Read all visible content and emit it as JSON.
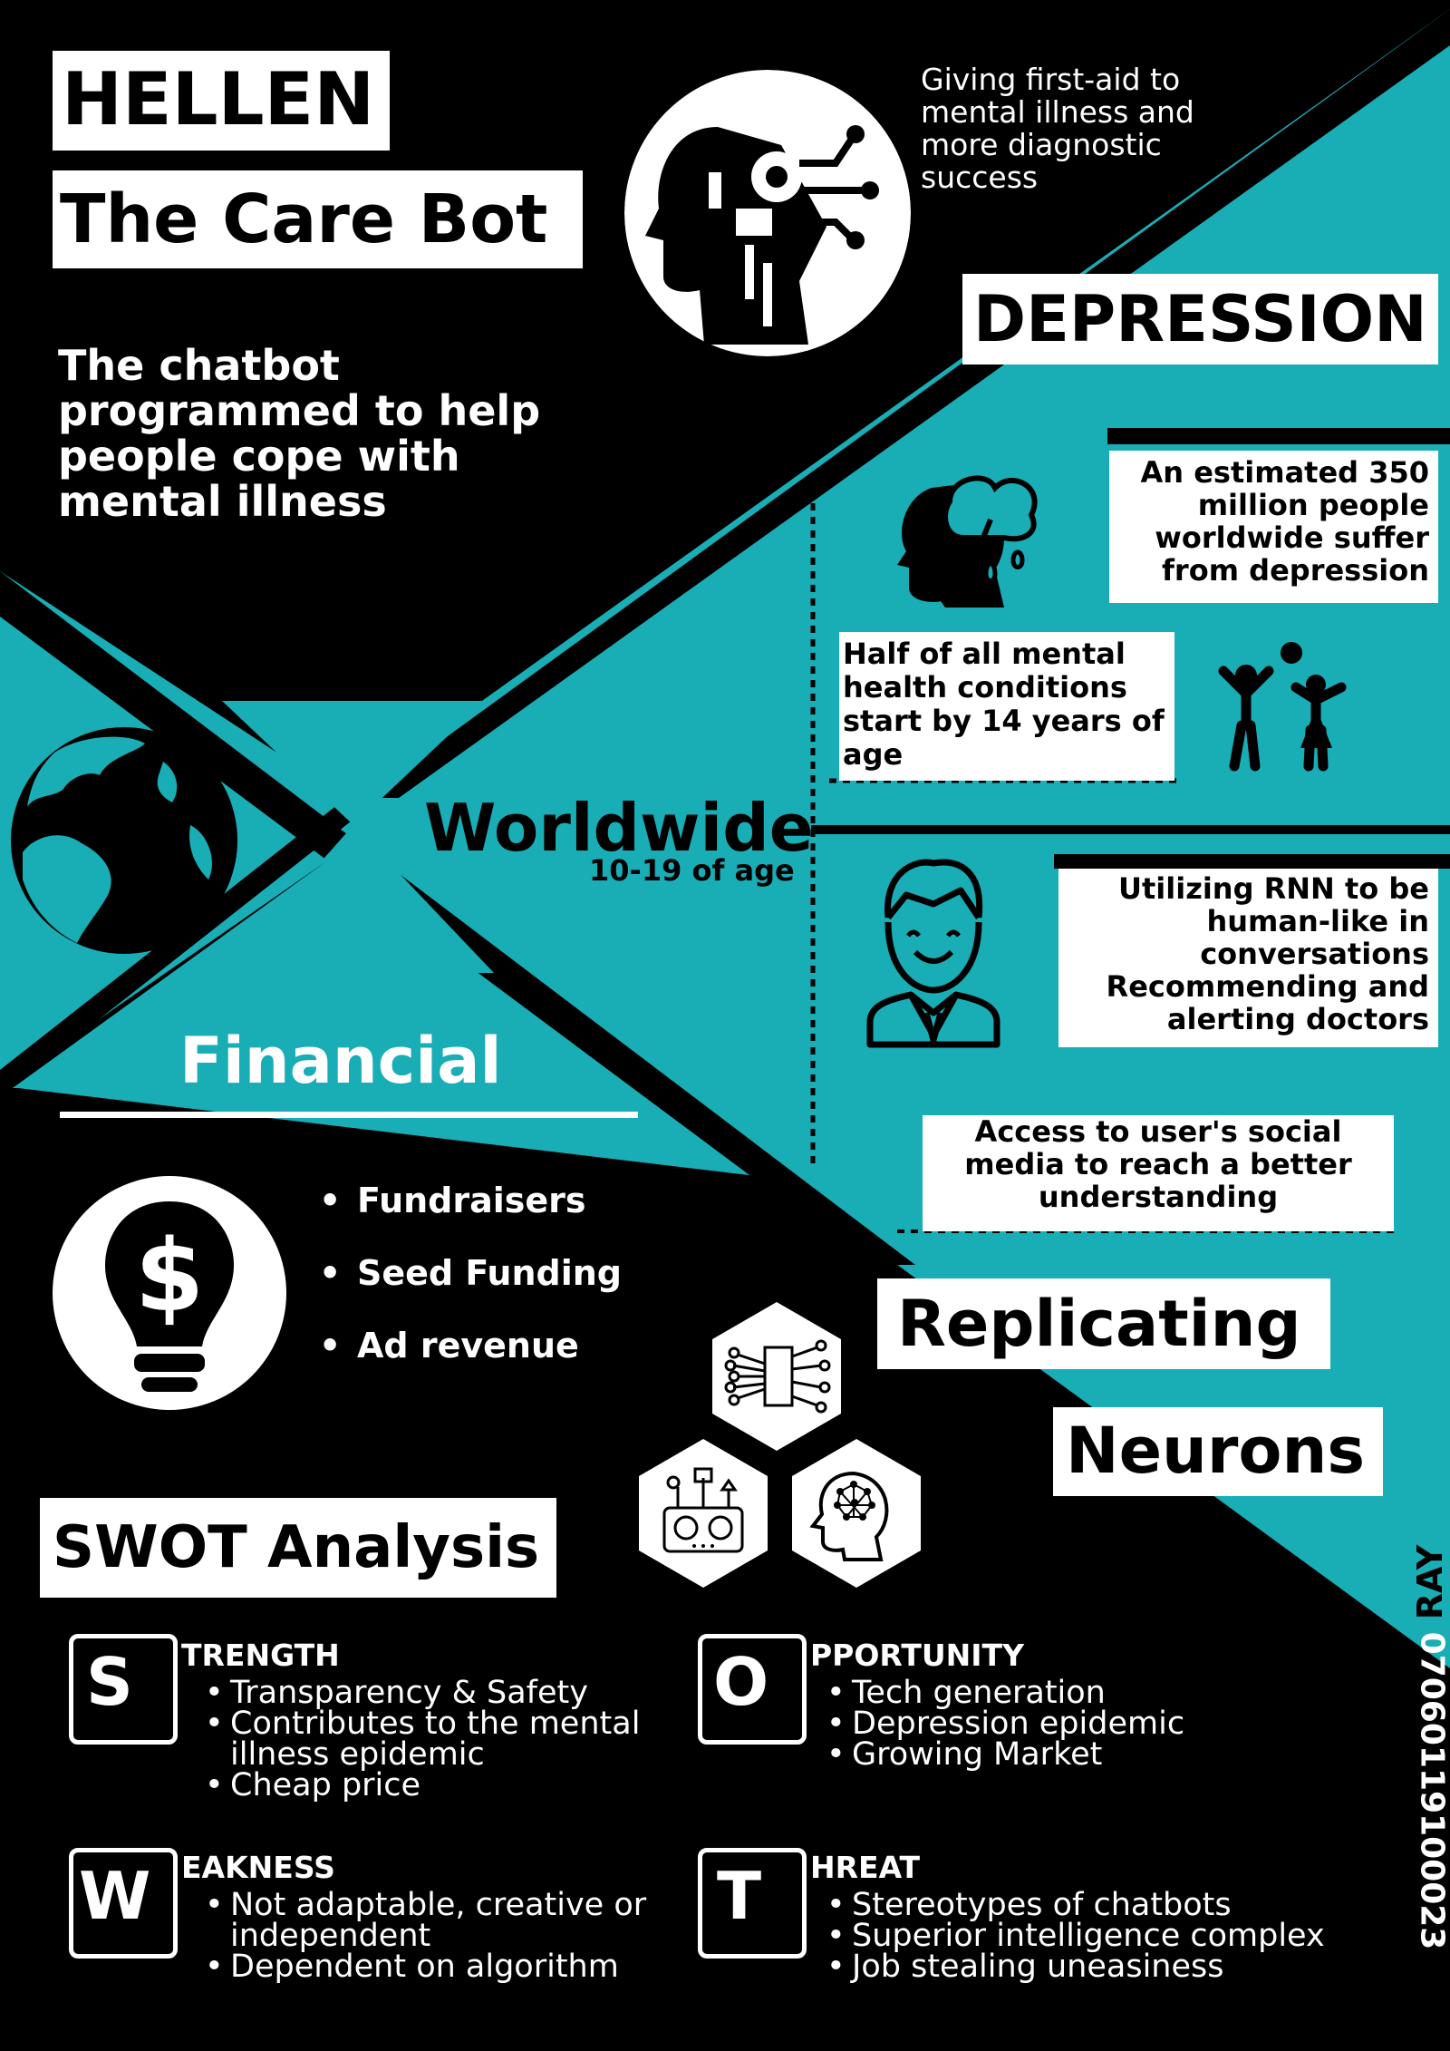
{
  "header": {
    "name": "HELLEN",
    "subtitle": "The Care Bot",
    "tagline": "The chatbot programmed to help people cope with mental illness",
    "mission": "Giving first-aid to mental illness and more diagnostic success"
  },
  "depression": {
    "title": "DEPRESSION",
    "stat_1": "An estimated 350 million people worldwide suffer from depression",
    "stat_2": "Half of all mental health conditions start by 14 years of age",
    "feature_1": "Utilizing RNN to be human-like in conversations Recommending and alerting doctors",
    "feature_2": "Access to user's social media to reach a better understanding"
  },
  "worldwide": {
    "title": "Worldwide",
    "subtitle": "10-19 of age"
  },
  "financial": {
    "title": "Financial",
    "items": [
      "Fundraisers",
      "Seed Funding",
      "Ad revenue"
    ]
  },
  "replicating": {
    "word_1": "Replicating",
    "word_2": "Neurons"
  },
  "swot": {
    "title": "SWOT Analysis",
    "strength": {
      "letter": "S",
      "heading": "TRENGTH",
      "items": [
        "Transparency & Safety",
        "Contributes to the mental illness epidemic",
        "Cheap price"
      ]
    },
    "weakness": {
      "letter": "W",
      "heading": "EAKNESS",
      "items": [
        "Not adaptable, creative or independent",
        "Dependent on algorithm"
      ]
    },
    "opportunity": {
      "letter": "O",
      "heading": "PPORTUNITY",
      "items": [
        "Tech generation",
        "Depression epidemic",
        "Growing Market"
      ]
    },
    "threat": {
      "letter": "T",
      "heading": "HREAT",
      "items": [
        "Stereotypes of chatbots",
        "Superior intelligence complex",
        "Job stealing uneasiness"
      ]
    }
  },
  "footer": {
    "author": "RAY",
    "phone": "07060119100023"
  },
  "icons": [
    "robot-head-icon",
    "depressed-head-icon",
    "kids-playing-icon",
    "smiling-doctor-icon",
    "globe-icon",
    "dollar-lightbulb-icon",
    "neural-chip-icon",
    "robot-machine-icon",
    "brain-head-icon"
  ],
  "colors": {
    "teal": "#19adb6",
    "black": "#000000",
    "white": "#ffffff"
  }
}
